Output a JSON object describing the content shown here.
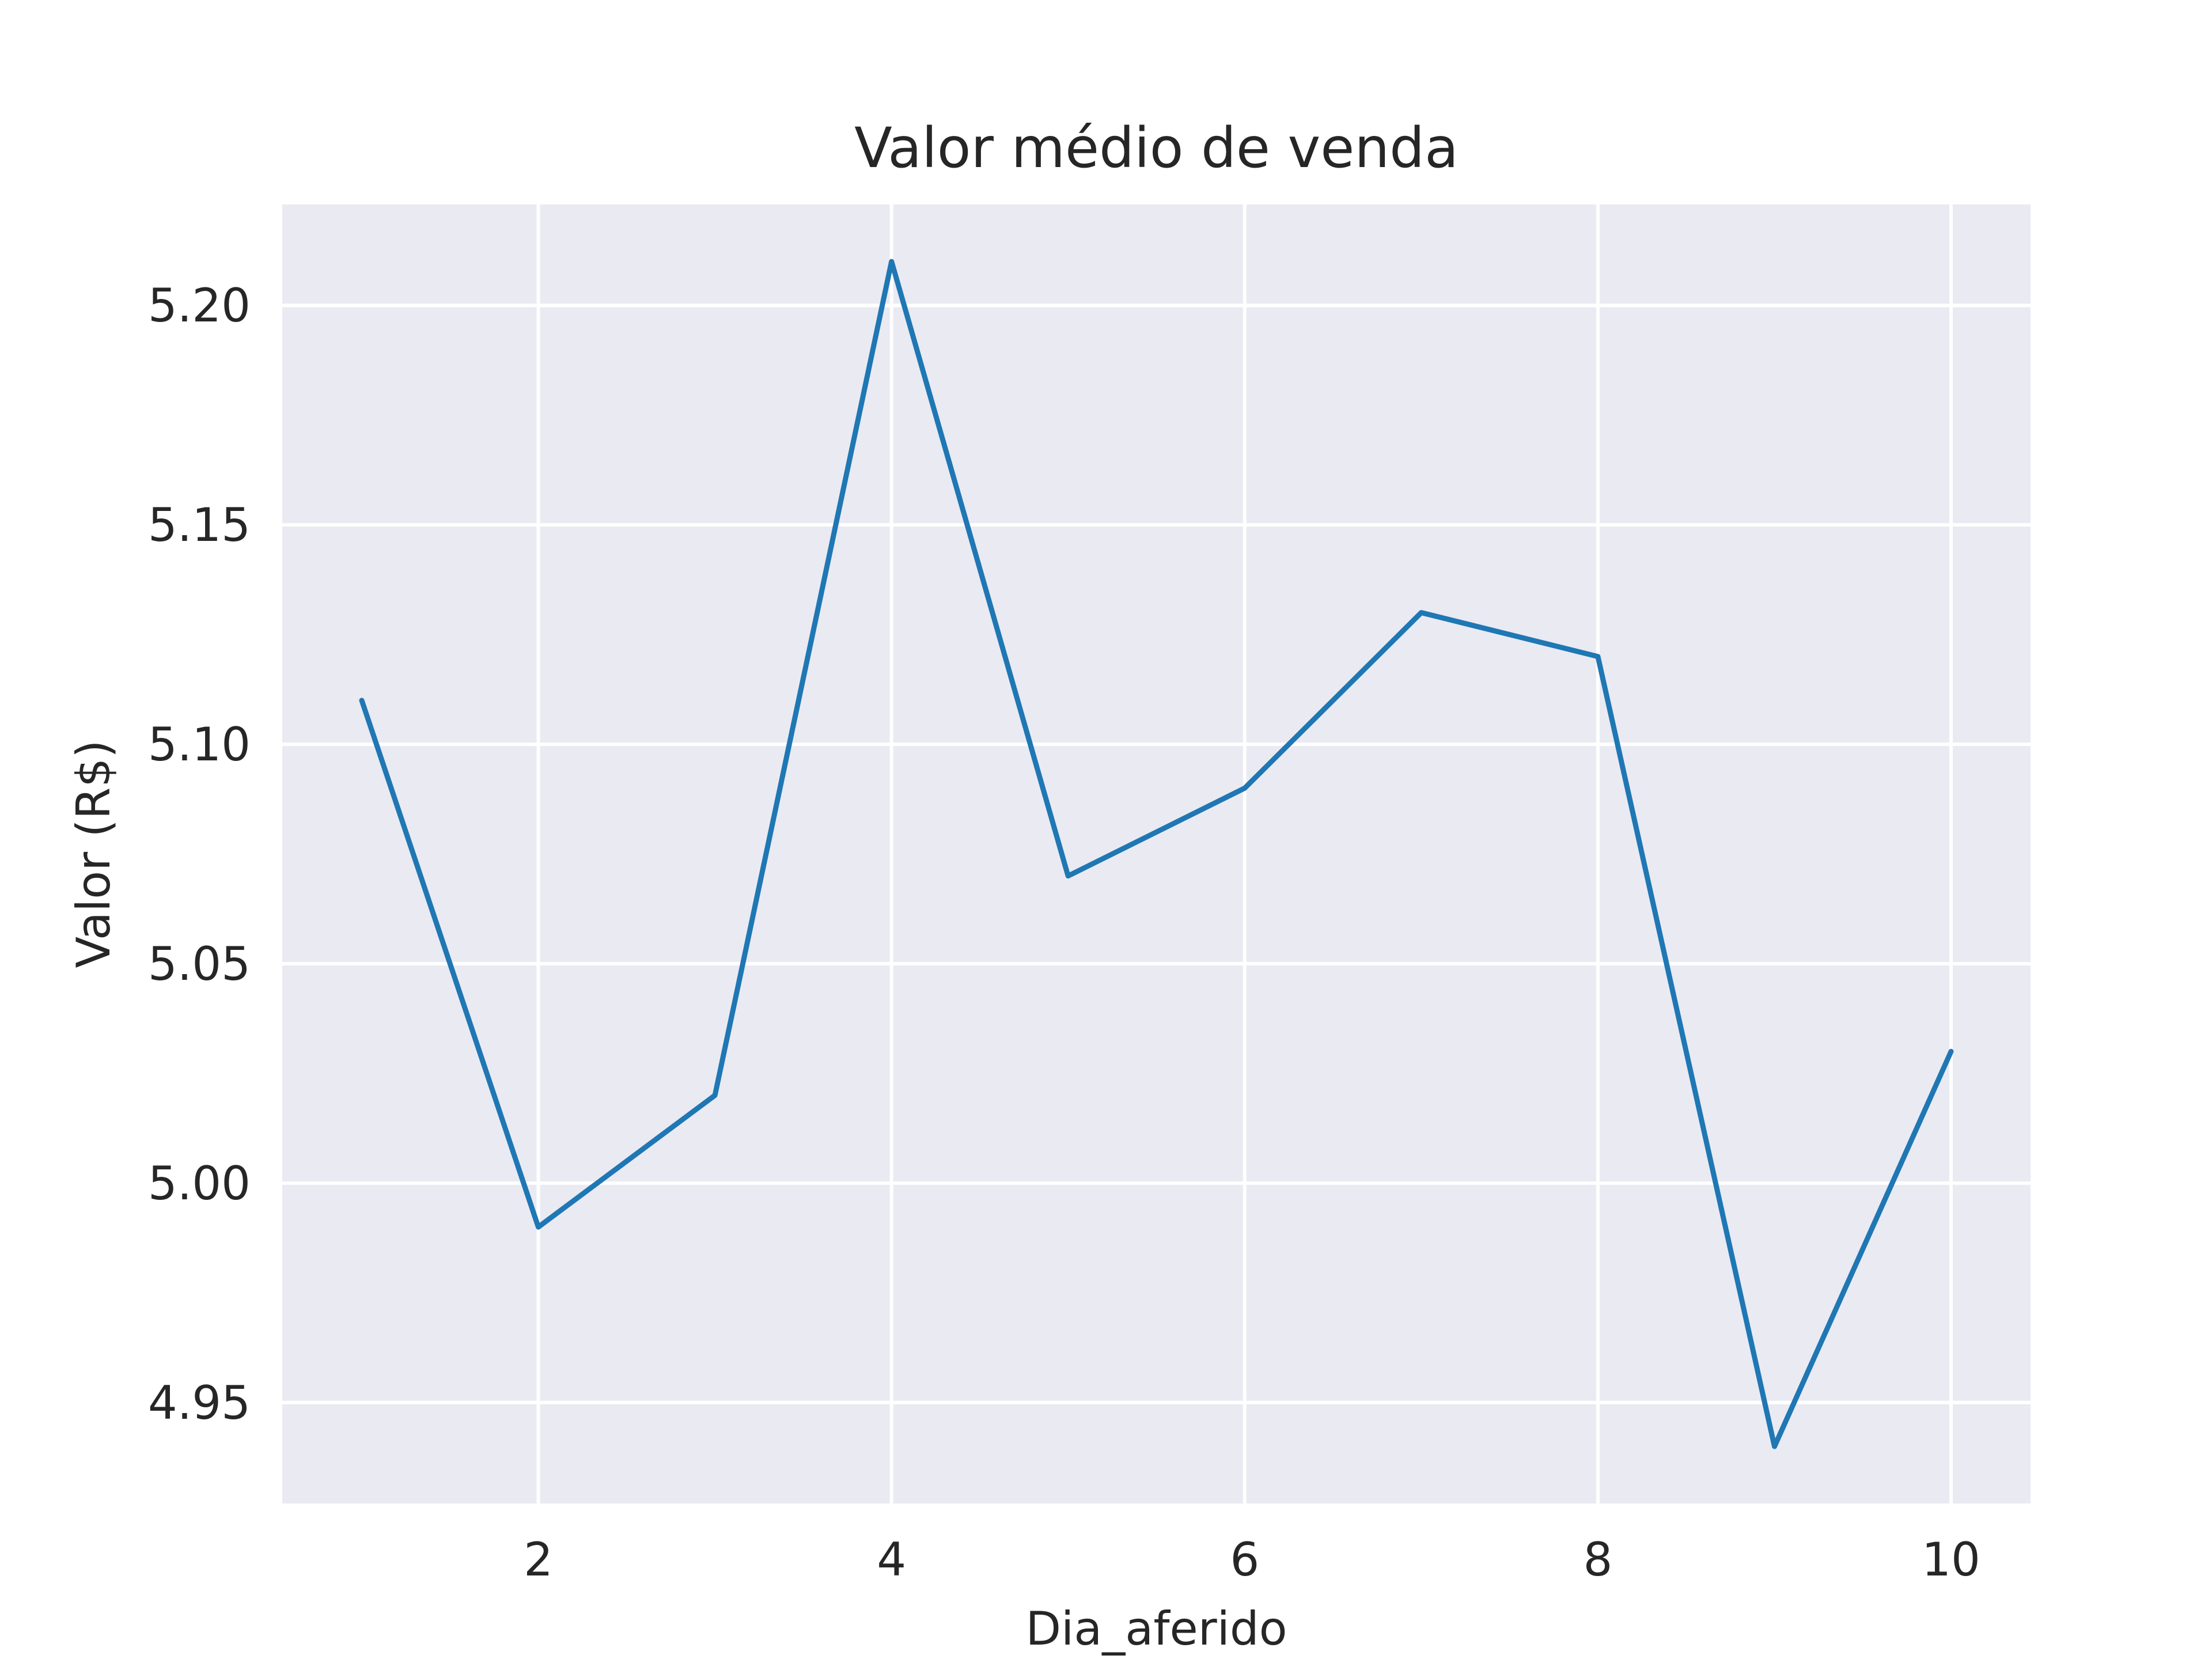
{
  "chart_data": {
    "type": "line",
    "title": "Valor médio de venda",
    "xlabel": "Dia_aferido",
    "ylabel": "Valor (R$)",
    "xlim": [
      0.55,
      10.45
    ],
    "ylim": [
      4.927,
      5.223
    ],
    "x_ticks": [
      2,
      4,
      6,
      8,
      10
    ],
    "x_tick_labels": [
      "2",
      "4",
      "6",
      "8",
      "10"
    ],
    "y_ticks": [
      4.95,
      5.0,
      5.05,
      5.1,
      5.15,
      5.2
    ],
    "y_tick_labels": [
      "4.95",
      "5.00",
      "5.05",
      "5.10",
      "5.15",
      "5.20"
    ],
    "grid": true,
    "series": [
      {
        "x": [
          1,
          2,
          3,
          4,
          5,
          6,
          7,
          8,
          9,
          10
        ],
        "values": [
          5.11,
          4.99,
          5.02,
          5.21,
          5.07,
          5.09,
          5.13,
          5.12,
          4.94,
          5.03
        ]
      }
    ],
    "colors": {
      "background": "#eaeaf2",
      "grid": "#ffffff",
      "line": "#1f77b4",
      "text": "#262626"
    }
  }
}
